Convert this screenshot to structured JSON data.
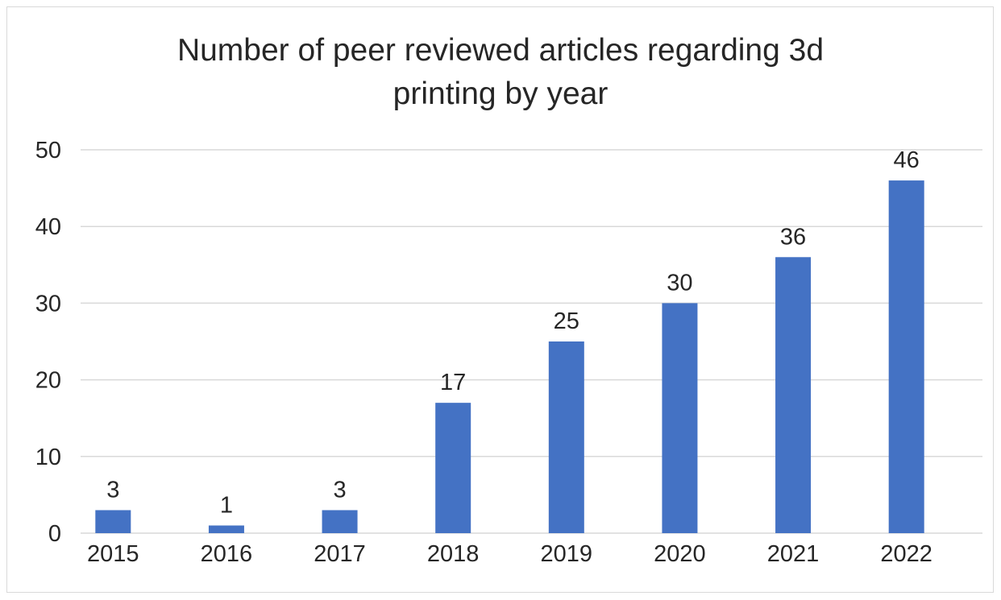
{
  "chart_data": {
    "type": "bar",
    "title": "Number of peer reviewed articles regarding 3d\nprinting by year",
    "categories": [
      "2015",
      "2016",
      "2017",
      "2018",
      "2019",
      "2020",
      "2021",
      "2022"
    ],
    "values": [
      3,
      1,
      3,
      17,
      25,
      30,
      36,
      46
    ],
    "data_labels": [
      "3",
      "1",
      "3",
      "17",
      "25",
      "30",
      "36",
      "46"
    ],
    "y_ticks": [
      "0",
      "10",
      "20",
      "30",
      "40",
      "50"
    ],
    "ylim": [
      0,
      50
    ],
    "grid": true,
    "legend": "none",
    "bar_color": "#4472C4",
    "grid_color": "#d9d9d9",
    "text_color": "#262626"
  }
}
